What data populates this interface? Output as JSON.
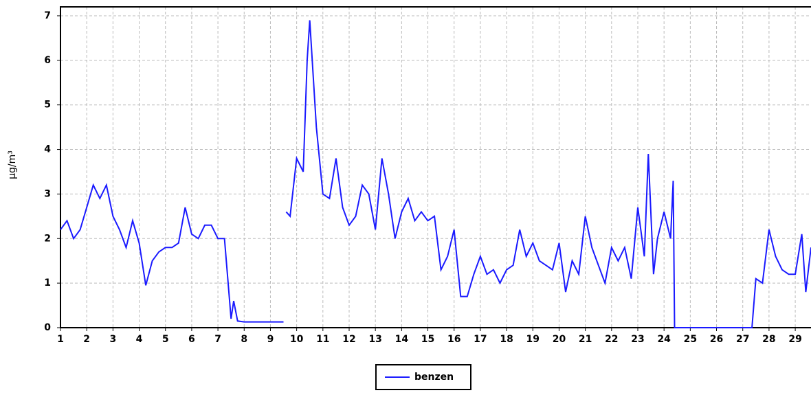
{
  "chart_data": {
    "type": "line",
    "ylabel": "µg/m³",
    "x": [
      1.0,
      1.25,
      1.5,
      1.75,
      2.0,
      2.25,
      2.5,
      2.75,
      3.0,
      3.25,
      3.5,
      3.75,
      4.0,
      4.25,
      4.5,
      4.75,
      5.0,
      5.25,
      5.5,
      5.75,
      6.0,
      6.25,
      6.5,
      6.75,
      7.0,
      7.25,
      7.5,
      7.6,
      7.75,
      8.0,
      8.5,
      9.0,
      9.5,
      9.55,
      9.6,
      9.75,
      10.0,
      10.25,
      10.4,
      10.5,
      10.75,
      11.0,
      11.25,
      11.5,
      11.75,
      12.0,
      12.25,
      12.5,
      12.75,
      13.0,
      13.25,
      13.5,
      13.75,
      14.0,
      14.25,
      14.5,
      14.75,
      15.0,
      15.25,
      15.5,
      15.75,
      16.0,
      16.25,
      16.5,
      16.75,
      17.0,
      17.25,
      17.5,
      17.75,
      18.0,
      18.25,
      18.5,
      18.75,
      19.0,
      19.25,
      19.5,
      19.75,
      20.0,
      20.25,
      20.5,
      20.75,
      21.0,
      21.25,
      21.5,
      21.75,
      22.0,
      22.25,
      22.5,
      22.75,
      23.0,
      23.25,
      23.4,
      23.6,
      23.75,
      24.0,
      24.25,
      24.35,
      24.4,
      25.0,
      26.0,
      27.0,
      27.35,
      27.5,
      27.75,
      28.0,
      28.25,
      28.5,
      28.75,
      29.0,
      29.25,
      29.4,
      29.6
    ],
    "series": [
      {
        "name": "benzen",
        "color": "#1a1aff",
        "values": [
          2.2,
          2.4,
          2.0,
          2.2,
          2.7,
          3.2,
          2.9,
          3.2,
          2.5,
          2.2,
          1.8,
          2.4,
          1.9,
          0.95,
          1.5,
          1.7,
          1.8,
          1.8,
          1.9,
          2.7,
          2.1,
          2.0,
          2.3,
          2.3,
          2.0,
          2.0,
          0.2,
          0.6,
          0.15,
          0.13,
          0.13,
          0.13,
          0.13,
          null,
          2.6,
          2.5,
          3.8,
          3.5,
          6.0,
          6.9,
          4.5,
          3.0,
          2.9,
          3.8,
          2.7,
          2.3,
          2.5,
          3.2,
          3.0,
          2.2,
          3.8,
          3.0,
          2.0,
          2.6,
          2.9,
          2.4,
          2.6,
          2.4,
          2.5,
          1.3,
          1.6,
          2.2,
          0.7,
          0.7,
          1.2,
          1.6,
          1.2,
          1.3,
          1.0,
          1.3,
          1.4,
          2.2,
          1.6,
          1.9,
          1.5,
          1.4,
          1.3,
          1.9,
          0.8,
          1.5,
          1.2,
          2.5,
          1.8,
          1.4,
          1.0,
          1.8,
          1.5,
          1.8,
          1.1,
          2.7,
          1.6,
          3.9,
          1.2,
          2.0,
          2.6,
          2.0,
          3.3,
          0.0,
          0.0,
          0.0,
          0.0,
          0.0,
          1.1,
          1.0,
          2.2,
          1.6,
          1.3,
          1.2,
          1.2,
          2.1,
          0.8,
          1.8
        ]
      }
    ],
    "xlim": [
      1,
      29.6
    ],
    "xticks": [
      1,
      2,
      3,
      4,
      5,
      6,
      7,
      8,
      9,
      10,
      11,
      12,
      13,
      14,
      15,
      16,
      17,
      18,
      19,
      20,
      21,
      22,
      23,
      24,
      25,
      26,
      27,
      28,
      29
    ],
    "ylim": [
      0,
      7.2
    ],
    "yticks": [
      0,
      1,
      2,
      3,
      4,
      5,
      6,
      7
    ],
    "grid": true,
    "legend": "bottom"
  }
}
